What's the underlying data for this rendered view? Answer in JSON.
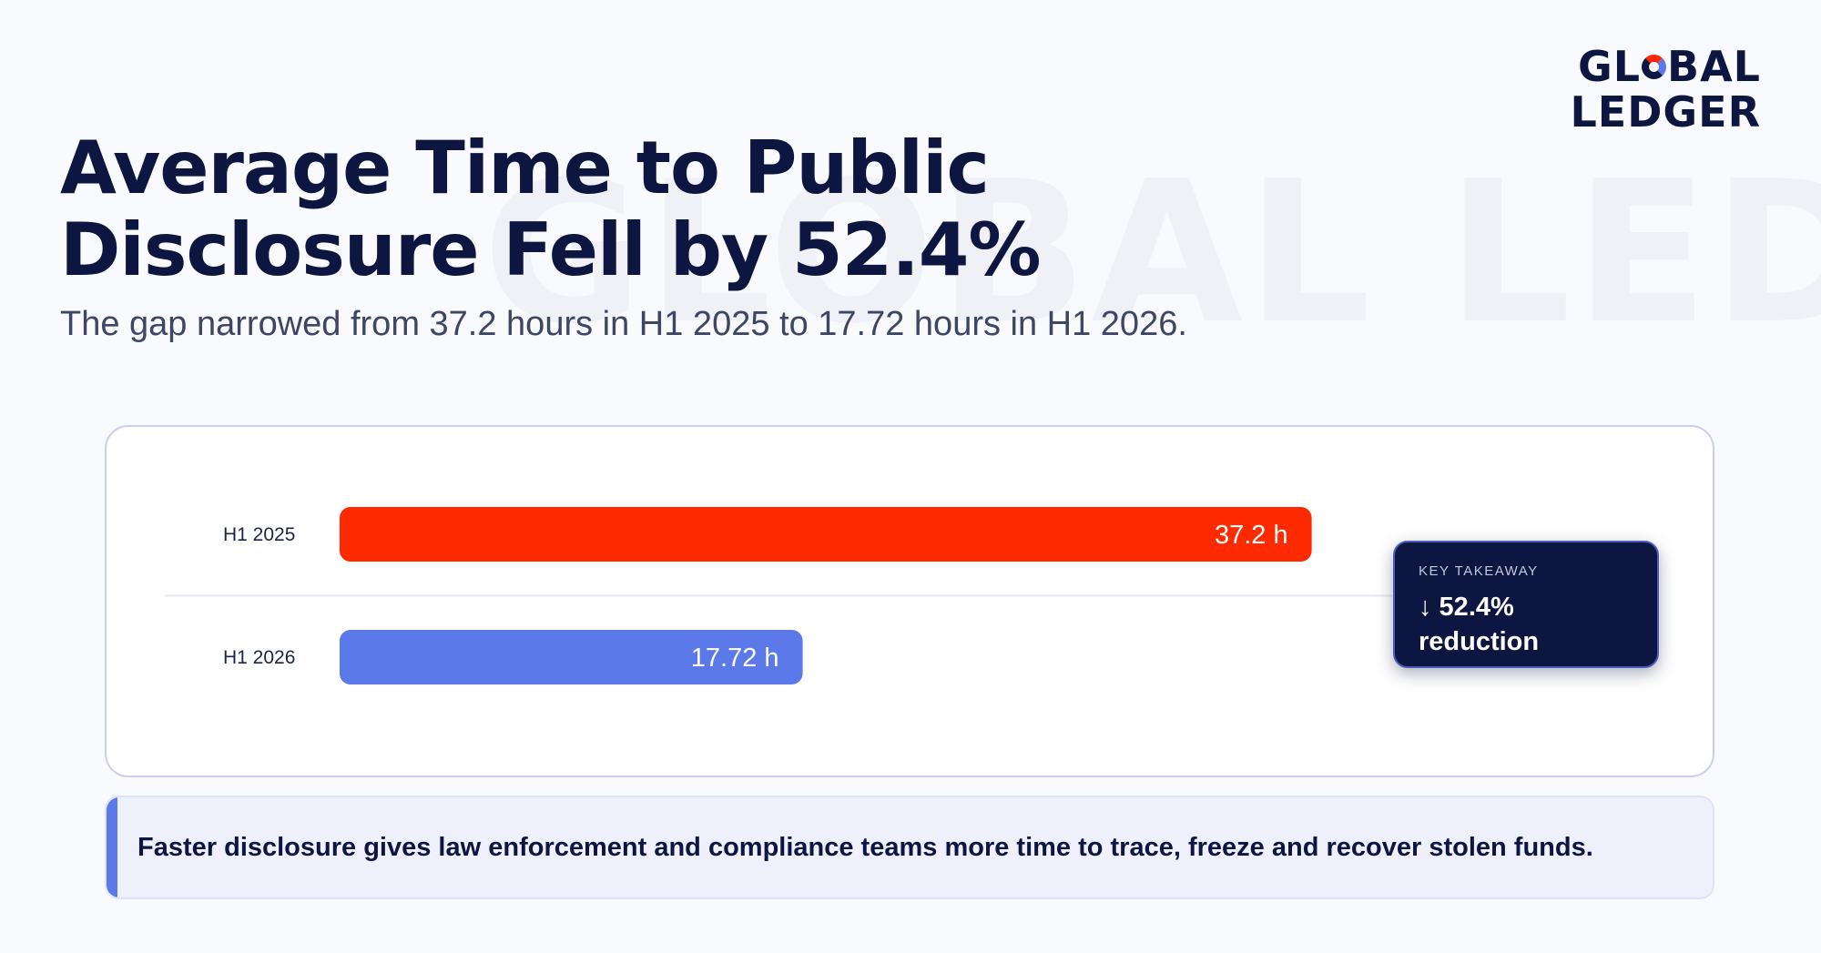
{
  "brand": {
    "line1_pre": "GL",
    "line1_post": "BAL",
    "line2": "LEDGER",
    "watermark": "GLOBAL LEDGER"
  },
  "header": {
    "title": "Average Time to Public Disclosure Fell by 52.4%",
    "subtitle": "The gap narrowed from 37.2 hours in H1 2025 to 17.72 hours in H1 2026."
  },
  "chart_data": {
    "type": "bar",
    "orientation": "horizontal",
    "categories": [
      "H1 2025",
      "H1 2026"
    ],
    "values": [
      37.2,
      17.72
    ],
    "value_labels": [
      "37.2 h",
      "17.72 h"
    ],
    "colors": [
      "#ff2a00",
      "#5c79e9"
    ],
    "title": "",
    "xlabel": "",
    "ylabel": ""
  },
  "takeaway": {
    "label": "KEY TAKEAWAY",
    "line1": "↓ 52.4%",
    "line2": "reduction"
  },
  "note": "Faster disclosure gives law enforcement and compliance teams more time to trace, freeze and recover stolen funds.",
  "colors": {
    "navy": "#0d1640",
    "accent_red": "#ff2a00",
    "accent_blue": "#5c79e9"
  }
}
